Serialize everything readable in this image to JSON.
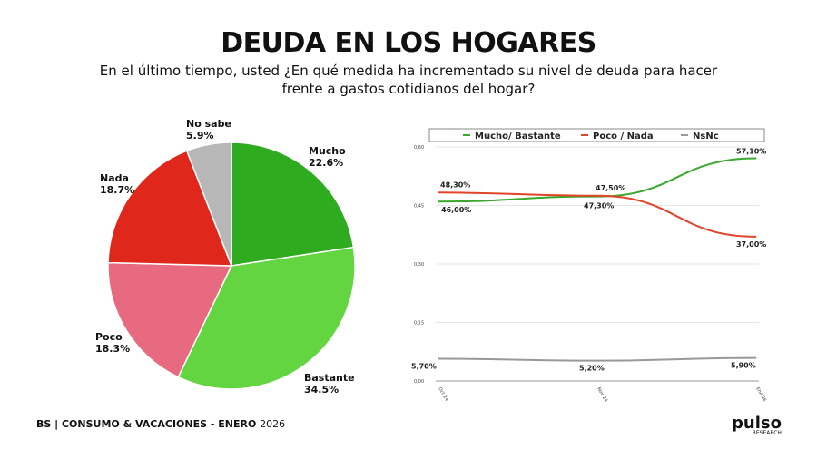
{
  "title": "DEUDA EN LOS HOGARES",
  "subtitle": "En el último tiempo, usted ¿En qué medida ha incrementado su nivel de deuda para hacer frente a gastos cotidianos del hogar?",
  "footer": {
    "main": "BS | CONSUMO & VACACIONES - ENERO",
    "year": "2026"
  },
  "logo": {
    "name": "pulso",
    "sub": "RESEARCH"
  },
  "chart_data": [
    {
      "type": "pie",
      "slices": [
        {
          "label": "Mucho",
          "value": 22.6,
          "display": "22.6%",
          "color": "#2fab1f"
        },
        {
          "label": "Bastante",
          "value": 34.5,
          "display": "34.5%",
          "color": "#62d541"
        },
        {
          "label": "Poco",
          "value": 18.3,
          "display": "18.3%",
          "color": "#e76a80"
        },
        {
          "label": "Nada",
          "value": 18.7,
          "display": "18.7%",
          "color": "#e0271b"
        },
        {
          "label": "No sabe",
          "value": 5.9,
          "display": "5.9%",
          "color": "#b7b7b7"
        }
      ]
    },
    {
      "type": "line",
      "categories": [
        "Oct 24",
        "Nov 24",
        "Ene 26"
      ],
      "ylim": [
        0,
        0.6
      ],
      "yticks": [
        "0,00",
        "0,15",
        "0,30",
        "0,45",
        "0,60"
      ],
      "grid": true,
      "legend": "top",
      "series": [
        {
          "name": "Mucho/ Bastante",
          "values": [
            0.46,
            0.473,
            0.571
          ],
          "labels": [
            "46,00%",
            "47,30%",
            "57,10%"
          ],
          "color": "#3aa82c"
        },
        {
          "name": "Poco / Nada",
          "values": [
            0.483,
            0.475,
            0.37
          ],
          "labels": [
            "48,30%",
            "47,50%",
            "37,00%"
          ],
          "color": "#e0452b"
        },
        {
          "name": "NsNc",
          "values": [
            0.057,
            0.052,
            0.059
          ],
          "labels": [
            "5,70%",
            "5,20%",
            "5,90%"
          ],
          "color": "#999999"
        }
      ]
    }
  ]
}
